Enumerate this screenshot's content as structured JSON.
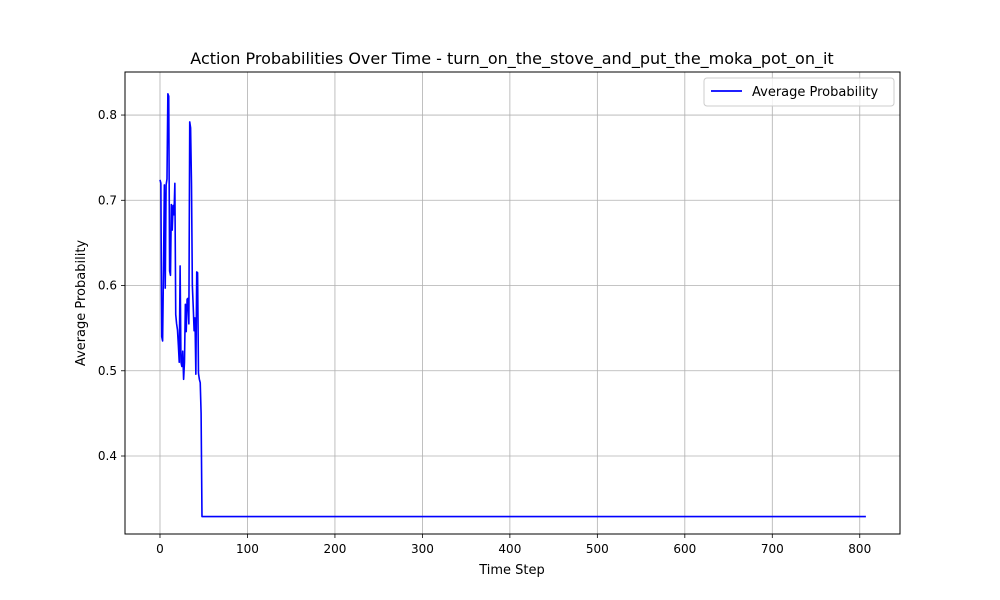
{
  "chart_data": {
    "type": "line",
    "title": "Action Probabilities Over Time - turn_on_the_stove_and_put_the_moka_pot_on_it",
    "xlabel": "Time Step",
    "ylabel": "Average Probability",
    "xlim": [
      -40,
      846
    ],
    "ylim": [
      0.3085,
      0.8505
    ],
    "xticks": [
      0,
      100,
      200,
      300,
      400,
      500,
      600,
      700,
      800
    ],
    "yticks": [
      0.4,
      0.5,
      0.6,
      0.7,
      0.8
    ],
    "xtick_labels": [
      "0",
      "100",
      "200",
      "300",
      "400",
      "500",
      "600",
      "700",
      "800"
    ],
    "ytick_labels": [
      "0.4",
      "0.5",
      "0.6",
      "0.7",
      "0.8"
    ],
    "grid": true,
    "legend": {
      "position": "top-right"
    },
    "series": [
      {
        "name": "Average Probability",
        "color": "#0000ff",
        "x": [
          0,
          1,
          2,
          3,
          4,
          5,
          6,
          7,
          8,
          9,
          10,
          11,
          12,
          13,
          14,
          15,
          16,
          17,
          18,
          19,
          20,
          21,
          22,
          23,
          24,
          25,
          26,
          27,
          28,
          29,
          30,
          31,
          32,
          33,
          34,
          35,
          36,
          37,
          38,
          39,
          40,
          41,
          42,
          43,
          44,
          45,
          46,
          47,
          48,
          100,
          200,
          300,
          400,
          500,
          600,
          700,
          807
        ],
        "y": [
          0.724,
          0.72,
          0.54,
          0.535,
          0.62,
          0.718,
          0.597,
          0.718,
          0.725,
          0.825,
          0.822,
          0.617,
          0.612,
          0.695,
          0.665,
          0.694,
          0.683,
          0.72,
          0.566,
          0.555,
          0.548,
          0.53,
          0.51,
          0.623,
          0.51,
          0.505,
          0.523,
          0.49,
          0.51,
          0.578,
          0.546,
          0.584,
          0.585,
          0.555,
          0.792,
          0.785,
          0.72,
          0.6,
          0.575,
          0.547,
          0.562,
          0.496,
          0.616,
          0.615,
          0.497,
          0.49,
          0.486,
          0.45,
          0.329,
          0.329,
          0.329,
          0.329,
          0.329,
          0.329,
          0.329,
          0.329,
          0.329
        ]
      }
    ]
  }
}
